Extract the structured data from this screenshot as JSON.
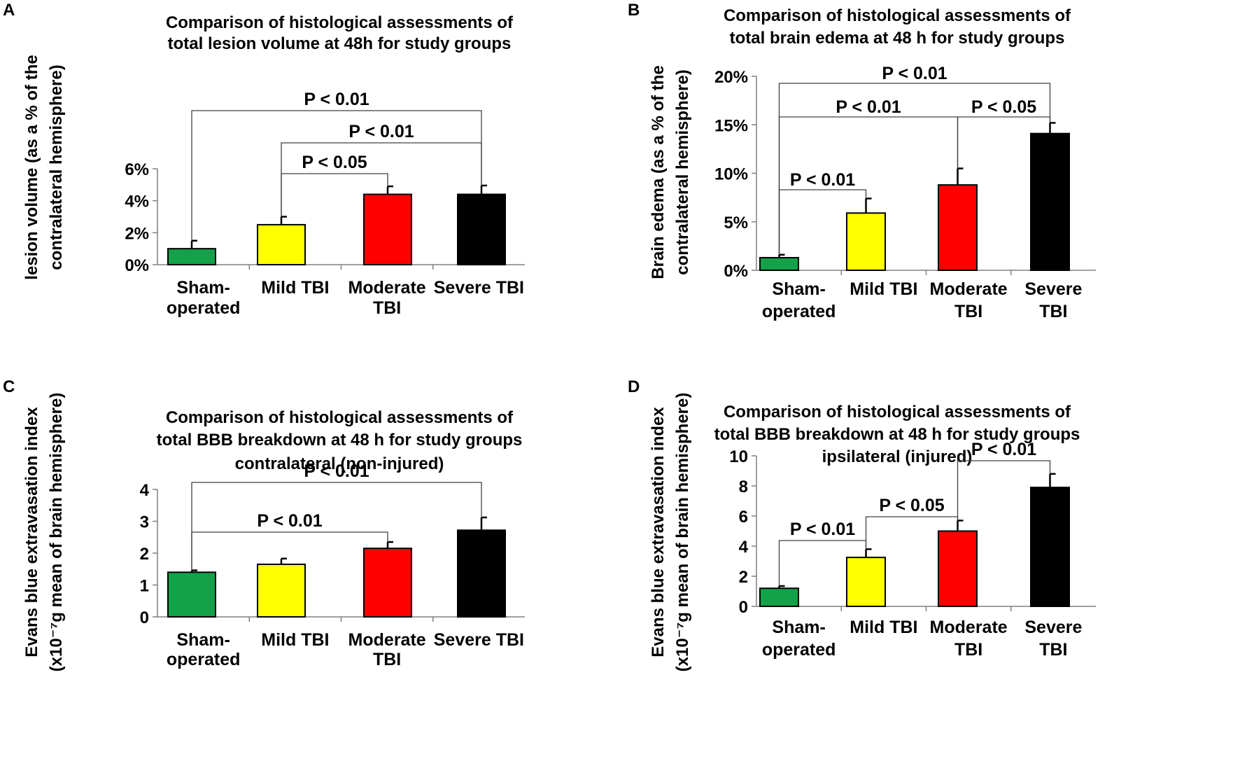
{
  "figure": {
    "colors": {
      "sham": "#13a24a",
      "mild": "#ffff00",
      "moderate": "#ff0000",
      "severe": "#000000",
      "axis": "#808080",
      "bracket": "#404040"
    }
  },
  "chart_data": [
    {
      "panel": "A",
      "type": "bar",
      "title": [
        "Comparison of histological assessments of",
        "total lesion volume at 48h for study groups"
      ],
      "ylabel": [
        "lesion volume (as a % of the",
        "contralateral hemisphere)"
      ],
      "categories": [
        [
          "Sham-",
          "operated"
        ],
        [
          "Mild TBI"
        ],
        [
          "Moderate",
          "TBI"
        ],
        [
          "Severe TBI"
        ]
      ],
      "values": [
        1.0,
        2.5,
        4.4,
        4.4
      ],
      "errors": [
        0.5,
        0.5,
        0.5,
        0.55
      ],
      "colors": [
        "#13a24a",
        "#ffff00",
        "#ff0000",
        "#000000"
      ],
      "ylim": [
        0,
        6
      ],
      "yticks": [
        0,
        2,
        4,
        6
      ],
      "ytick_labels": [
        "0%",
        "2%",
        "4%",
        "6%"
      ],
      "significance": [
        {
          "from": 0,
          "to": 3,
          "label": "P < 0.01"
        },
        {
          "from": 1,
          "to": 3,
          "label": "P < 0.01"
        },
        {
          "from": 1,
          "to": 2,
          "label": "P < 0.05"
        }
      ]
    },
    {
      "panel": "B",
      "type": "bar",
      "title": [
        "Comparison of histological assessments of",
        "total brain edema at 48 h for study groups"
      ],
      "ylabel": [
        "Brain edema (as a % of the",
        "contralateral hemisphere)"
      ],
      "categories": [
        [
          "Sham-",
          "operated"
        ],
        [
          "Mild TBI"
        ],
        [
          "Moderate",
          "TBI"
        ],
        [
          "Severe",
          "TBI"
        ]
      ],
      "values": [
        1.3,
        5.9,
        8.8,
        14.1
      ],
      "errors": [
        0.3,
        1.5,
        1.7,
        1.1
      ],
      "colors": [
        "#13a24a",
        "#ffff00",
        "#ff0000",
        "#000000"
      ],
      "ylim": [
        0,
        20
      ],
      "yticks": [
        0,
        5,
        10,
        15,
        20
      ],
      "ytick_labels": [
        "0%",
        "5%",
        "10%",
        "15%",
        "20%"
      ],
      "significance": [
        {
          "from": 0,
          "to": 3,
          "label": "P < 0.01"
        },
        {
          "from": 0,
          "to": 2,
          "label": "P < 0.01"
        },
        {
          "from": 2,
          "to": 3,
          "label": "P < 0.05"
        },
        {
          "from": 0,
          "to": 1,
          "label": "P < 0.01"
        }
      ]
    },
    {
      "panel": "C",
      "type": "bar",
      "title": [
        "Comparison of histological assessments of",
        "total BBB breakdown at 48 h for study groups",
        "contralateral (non-injured)"
      ],
      "ylabel": [
        "Evans blue extravasation index",
        "(x10⁻⁷g mean of brain hemisphere)"
      ],
      "categories": [
        [
          "Sham-",
          "operated"
        ],
        [
          "Mild TBI"
        ],
        [
          "Moderate",
          "TBI"
        ],
        [
          "Severe TBI"
        ]
      ],
      "values": [
        1.4,
        1.65,
        2.15,
        2.72
      ],
      "errors": [
        0.06,
        0.18,
        0.2,
        0.4
      ],
      "colors": [
        "#13a24a",
        "#ffff00",
        "#ff0000",
        "#000000"
      ],
      "ylim": [
        0,
        4
      ],
      "yticks": [
        0,
        1,
        2,
        3,
        4
      ],
      "ytick_labels": [
        "0",
        "1",
        "2",
        "3",
        "4"
      ],
      "significance": [
        {
          "from": 0,
          "to": 3,
          "label": "P < 0.01"
        },
        {
          "from": 0,
          "to": 2,
          "label": "P < 0.01"
        }
      ]
    },
    {
      "panel": "D",
      "type": "bar",
      "title": [
        "Comparison of histological assessments of",
        "total BBB breakdown at 48 h for study groups",
        "ipsilateral (injured)"
      ],
      "ylabel": [
        "Evans blue extravasation index",
        "(x10⁻⁷g mean of brain hemisphere)"
      ],
      "categories": [
        [
          "Sham-",
          "operated"
        ],
        [
          "Mild TBI"
        ],
        [
          "Moderate",
          "TBI"
        ],
        [
          "Severe",
          "TBI"
        ]
      ],
      "values": [
        1.2,
        3.25,
        5.0,
        7.9
      ],
      "errors": [
        0.15,
        0.55,
        0.7,
        0.9
      ],
      "colors": [
        "#13a24a",
        "#ffff00",
        "#ff0000",
        "#000000"
      ],
      "ylim": [
        0,
        10
      ],
      "yticks": [
        0,
        2,
        4,
        6,
        8,
        10
      ],
      "ytick_labels": [
        "0",
        "2",
        "4",
        "6",
        "8",
        "10"
      ],
      "significance": [
        {
          "from": 2,
          "to": 3,
          "label": "P < 0.01"
        },
        {
          "from": 1,
          "to": 2,
          "label": "P < 0.05"
        },
        {
          "from": 0,
          "to": 1,
          "label": "P < 0.01"
        }
      ]
    }
  ]
}
